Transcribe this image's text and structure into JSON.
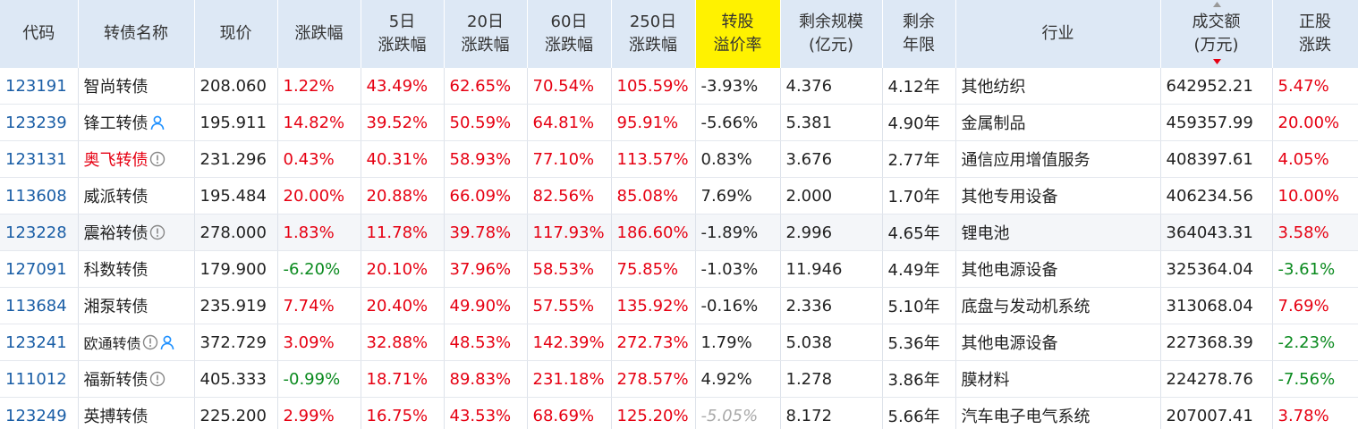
{
  "table": {
    "header": [
      [
        "代码"
      ],
      [
        "转债名称"
      ],
      [
        "现价"
      ],
      [
        "涨跌幅"
      ],
      [
        "5日",
        "涨跌幅"
      ],
      [
        "20日",
        "涨跌幅"
      ],
      [
        "60日",
        "涨跌幅"
      ],
      [
        "250日",
        "涨跌幅"
      ],
      [
        "转股",
        "溢价率"
      ],
      [
        "剩余规模",
        "(亿元)"
      ],
      [
        "剩余",
        "年限"
      ],
      [
        "行业"
      ],
      [
        "成交额",
        "(万元)"
      ],
      [
        "正股",
        "涨跌"
      ]
    ],
    "rows": [
      [
        "123191",
        "智尚转债",
        "208.060",
        "1.22%",
        "43.49%",
        "62.65%",
        "70.54%",
        "105.59%",
        "-3.93%",
        "4.376",
        "4.12年",
        "其他纺织",
        "642952.21",
        "5.47%"
      ],
      [
        "123239",
        "锋工转债",
        "195.911",
        "14.82%",
        "39.52%",
        "50.59%",
        "64.81%",
        "95.91%",
        "-5.66%",
        "5.381",
        "4.90年",
        "金属制品",
        "459357.99",
        "20.00%"
      ],
      [
        "123131",
        "奥飞转债",
        "231.296",
        "0.43%",
        "40.31%",
        "58.93%",
        "77.10%",
        "113.57%",
        "0.83%",
        "3.676",
        "2.77年",
        "通信应用增值服务",
        "408397.61",
        "4.05%"
      ],
      [
        "113608",
        "威派转债",
        "195.484",
        "20.00%",
        "20.88%",
        "66.09%",
        "82.56%",
        "85.08%",
        "7.69%",
        "2.000",
        "1.70年",
        "其他专用设备",
        "406234.56",
        "10.00%"
      ],
      [
        "123228",
        "震裕转债",
        "278.000",
        "1.83%",
        "11.78%",
        "39.78%",
        "117.93%",
        "186.60%",
        "-1.89%",
        "2.996",
        "4.65年",
        "锂电池",
        "364043.31",
        "3.58%"
      ],
      [
        "127091",
        "科数转债",
        "179.900",
        "-6.20%",
        "20.10%",
        "37.96%",
        "58.53%",
        "75.85%",
        "-1.03%",
        "11.946",
        "4.49年",
        "其他电源设备",
        "325364.04",
        "-3.61%"
      ],
      [
        "113684",
        "湘泵转债",
        "235.919",
        "7.74%",
        "20.40%",
        "49.90%",
        "57.55%",
        "135.92%",
        "-0.16%",
        "2.336",
        "5.10年",
        "底盘与发动机系统",
        "313068.04",
        "7.69%"
      ],
      [
        "123241",
        "欧通转债",
        "372.729",
        "3.09%",
        "32.88%",
        "48.53%",
        "142.39%",
        "272.73%",
        "1.79%",
        "5.038",
        "5.36年",
        "其他电源设备",
        "227368.39",
        "-2.23%"
      ],
      [
        "111012",
        "福新转债",
        "405.333",
        "-0.99%",
        "18.71%",
        "89.83%",
        "231.18%",
        "278.57%",
        "4.92%",
        "1.278",
        "3.86年",
        "膜材料",
        "224278.76",
        "-7.56%"
      ],
      [
        "123249",
        "英搏转债",
        "225.200",
        "2.99%",
        "16.75%",
        "43.53%",
        "68.69%",
        "125.20%",
        "-5.05%",
        "8.172",
        "5.66年",
        "汽车电子电气系统",
        "207007.41",
        "3.78%"
      ]
    ]
  }
}
